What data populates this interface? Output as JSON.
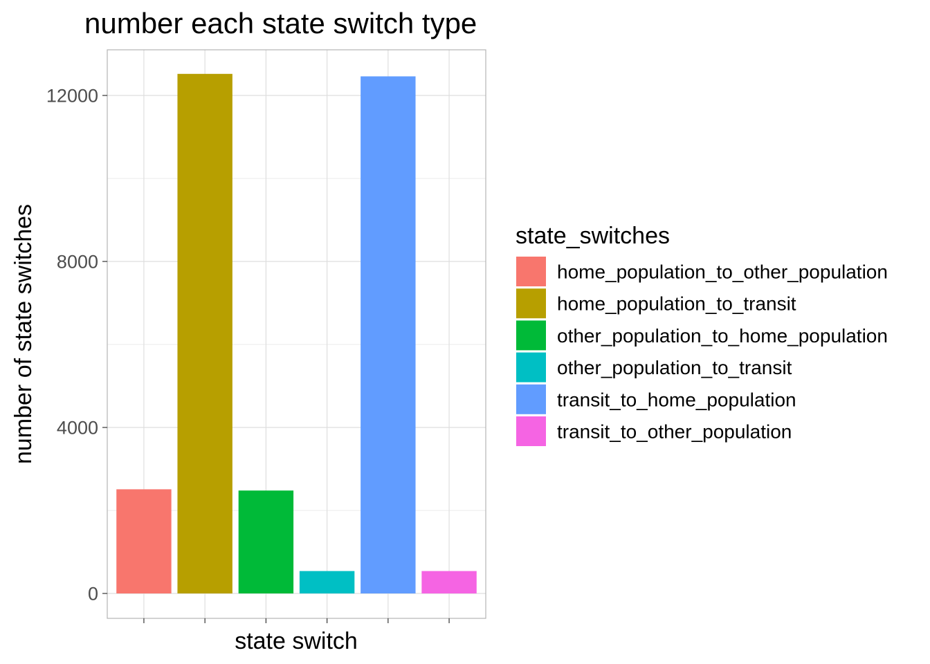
{
  "chart_data": {
    "type": "bar",
    "title": "number each state switch type",
    "xlabel": "state switch",
    "ylabel": "number of state switches",
    "categories": [
      "home_population_to_other_population",
      "home_population_to_transit",
      "other_population_to_home_population",
      "other_population_to_transit",
      "transit_to_home_population",
      "transit_to_other_population"
    ],
    "values": [
      2510,
      12520,
      2480,
      540,
      12460,
      540
    ],
    "colors": [
      "#F8766D",
      "#B79F00",
      "#00BA38",
      "#00BFC4",
      "#619CFF",
      "#F564E3"
    ],
    "ylim": [
      -600,
      13100
    ],
    "yticks": [
      0,
      4000,
      8000,
      12000
    ],
    "grid": true,
    "legend": {
      "title": "state_switches",
      "placement": "right"
    }
  }
}
